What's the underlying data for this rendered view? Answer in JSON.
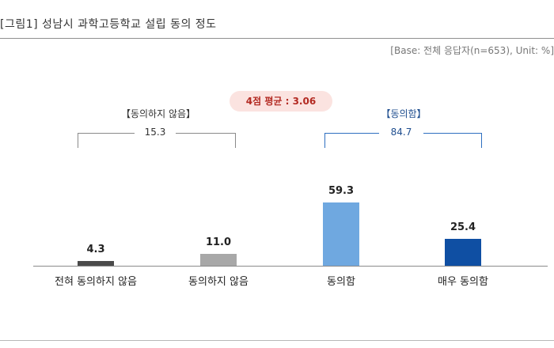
{
  "figure": {
    "title": "[그림1] 성남시 과학고등학교 설립 동의 정도",
    "base_note": "[Base: 전체 응답자(n=653), Unit: %]",
    "average_badge": "4점 평균 : 3.06"
  },
  "groups": {
    "disagree": {
      "label": "【동의하지 않음】",
      "value": "15.3"
    },
    "agree": {
      "label": "【동의함】",
      "value": "84.7"
    }
  },
  "chart_data": {
    "type": "bar",
    "title": "[그림1] 성남시 과학고등학교 설립 동의 정도",
    "categories": [
      "전혀 동의하지 않음",
      "동의하지 않음",
      "동의함",
      "매우 동의함"
    ],
    "values": [
      4.3,
      11.0,
      59.3,
      25.4
    ],
    "value_labels": [
      "4.3",
      "11.0",
      "59.3",
      "25.4"
    ],
    "colors": [
      "#4a4a4a",
      "#a8a8a8",
      "#6fa8e0",
      "#0f4fa3"
    ],
    "ylim": [
      0,
      70
    ],
    "grid": false,
    "annotations": [
      "4점 평균 : 3.06",
      "【동의하지 않음】 15.3",
      "【동의함】 84.7"
    ]
  }
}
